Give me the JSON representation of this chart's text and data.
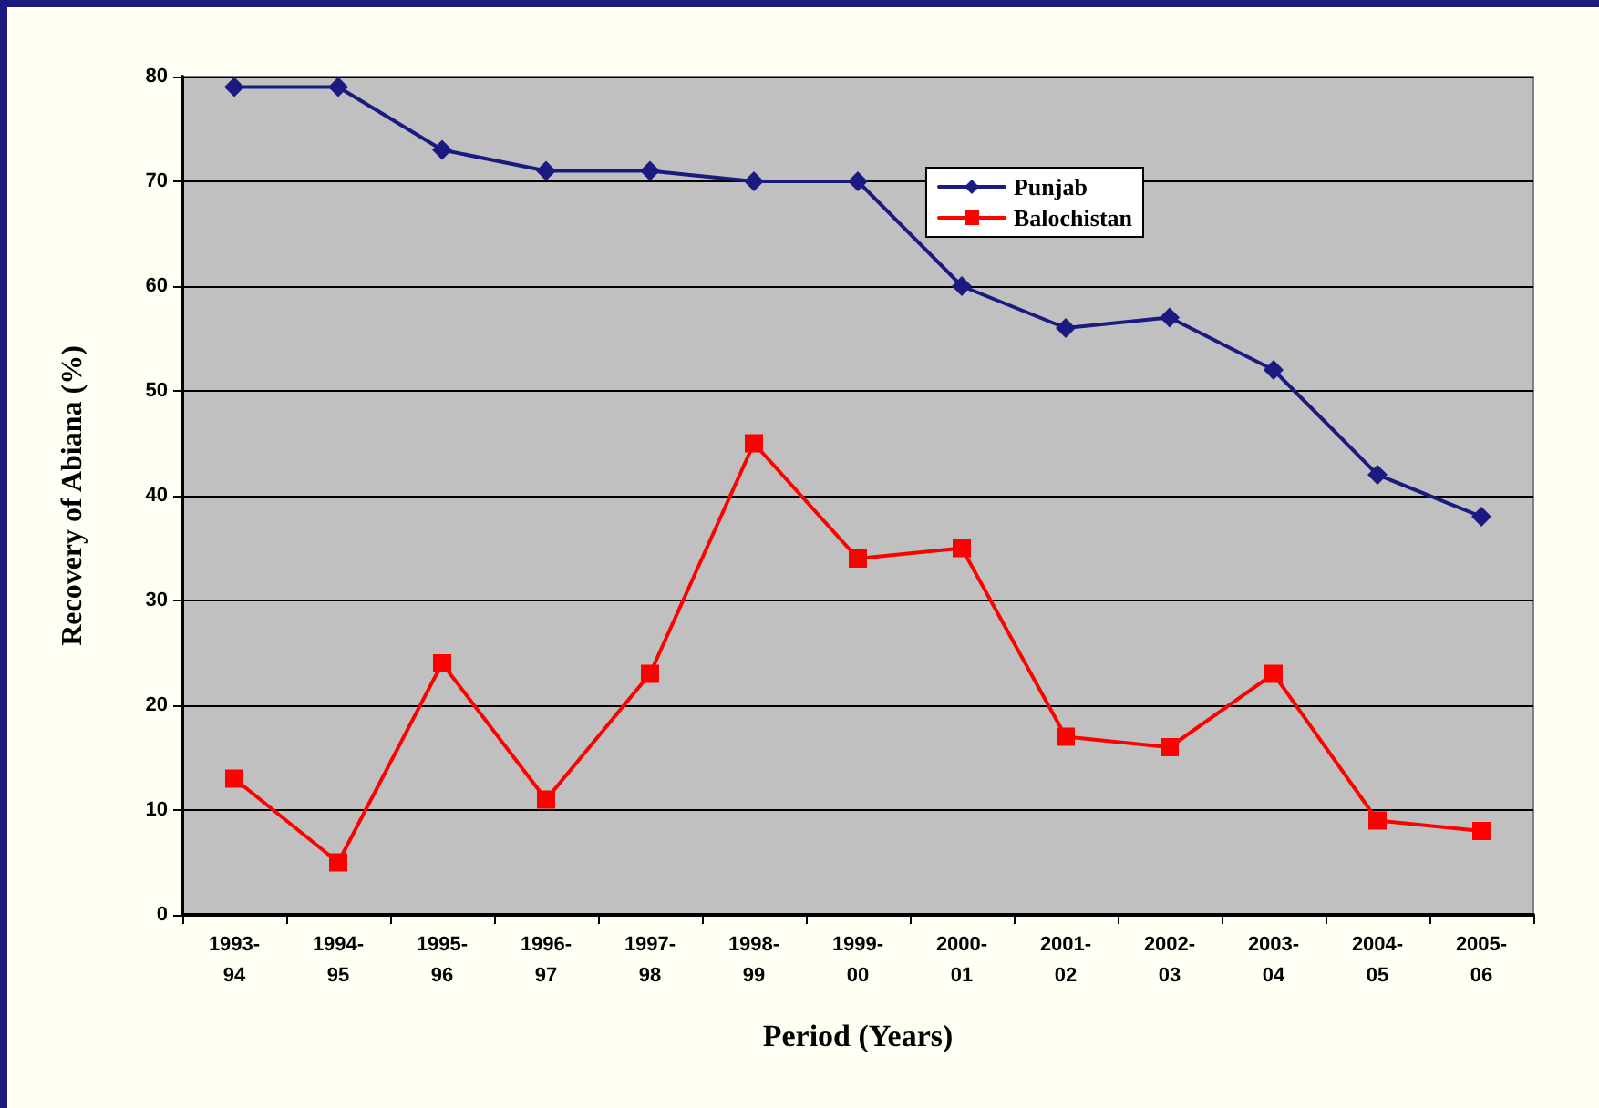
{
  "chart_data": {
    "type": "line",
    "xlabel": "Period (Years)",
    "ylabel": "Recovery of Abiana (%)",
    "categories": [
      "1993-94",
      "1994-95",
      "1995-96",
      "1996-97",
      "1997-98",
      "1998-99",
      "1999-00",
      "2000-01",
      "2001-02",
      "2002-03",
      "2003-04",
      "2004-05",
      "2005-06"
    ],
    "series": [
      {
        "name": "Punjab",
        "color": "#1a1a80",
        "marker": "diamond",
        "values": [
          79,
          79,
          73,
          71,
          71,
          70,
          70,
          60,
          56,
          57,
          52,
          42,
          38
        ]
      },
      {
        "name": "Balochistan",
        "color": "#ff0000",
        "marker": "square",
        "values": [
          13,
          5,
          24,
          11,
          23,
          45,
          34,
          35,
          17,
          16,
          23,
          9,
          8
        ]
      }
    ],
    "ylim": [
      0,
      80
    ],
    "yticks": [
      0,
      10,
      20,
      30,
      40,
      50,
      60,
      70,
      80
    ],
    "grid": "y",
    "legend": "top right",
    "line_style": "solid"
  }
}
